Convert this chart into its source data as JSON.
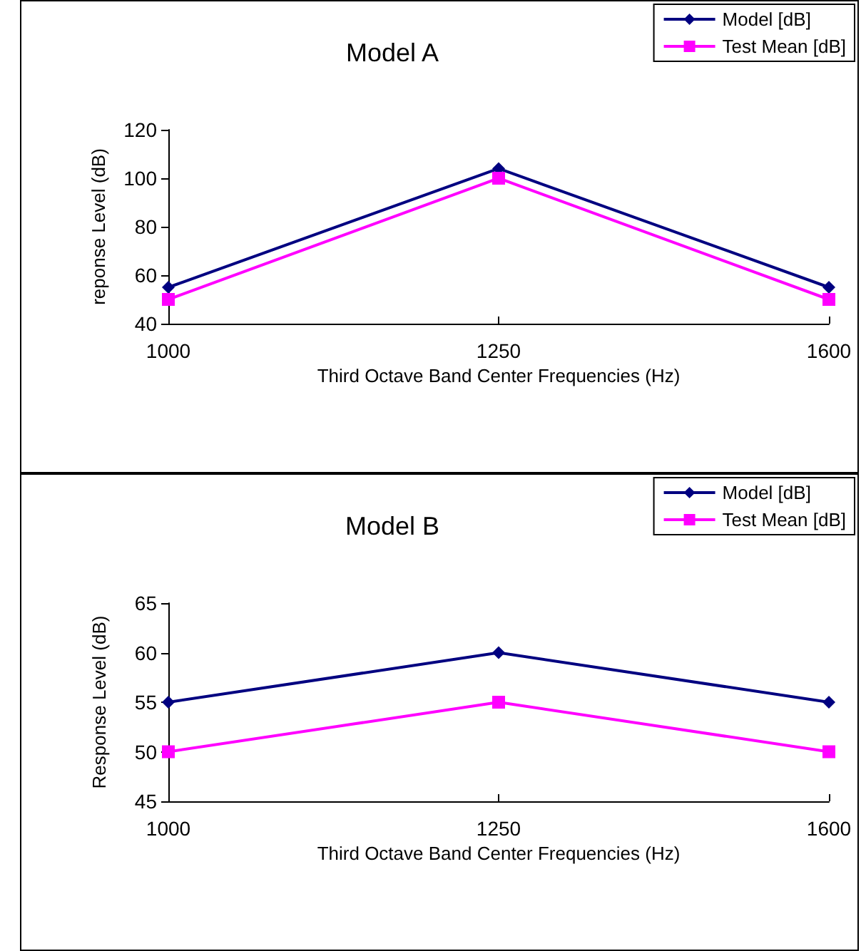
{
  "chart_data": [
    {
      "type": "line",
      "title": "Model A",
      "xlabel": "Third Octave Band Center Frequencies (Hz)",
      "ylabel": "reponse Level (dB)",
      "categories": [
        "1000",
        "1250",
        "1600"
      ],
      "series": [
        {
          "name": "Model [dB]",
          "color": "#000080",
          "marker": "diamond",
          "values": [
            55,
            104,
            55
          ]
        },
        {
          "name": "Test Mean [dB]",
          "color": "#ff00ff",
          "marker": "square",
          "values": [
            50,
            100,
            50
          ]
        }
      ],
      "ylim": [
        40,
        120
      ],
      "yticks": [
        40,
        60,
        80,
        100,
        120
      ],
      "legend": "top right"
    },
    {
      "type": "line",
      "title": "Model B",
      "xlabel": "Third Octave Band Center Frequencies (Hz)",
      "ylabel": "Response Level (dB)",
      "categories": [
        "1000",
        "1250",
        "1600"
      ],
      "series": [
        {
          "name": "Model [dB]",
          "color": "#000080",
          "marker": "diamond",
          "values": [
            55,
            60,
            55
          ]
        },
        {
          "name": "Test Mean [dB]",
          "color": "#ff00ff",
          "marker": "square",
          "values": [
            50,
            55,
            50
          ]
        }
      ],
      "ylim": [
        45,
        65
      ],
      "yticks": [
        45,
        50,
        55,
        60,
        65
      ],
      "legend": "top right"
    }
  ]
}
